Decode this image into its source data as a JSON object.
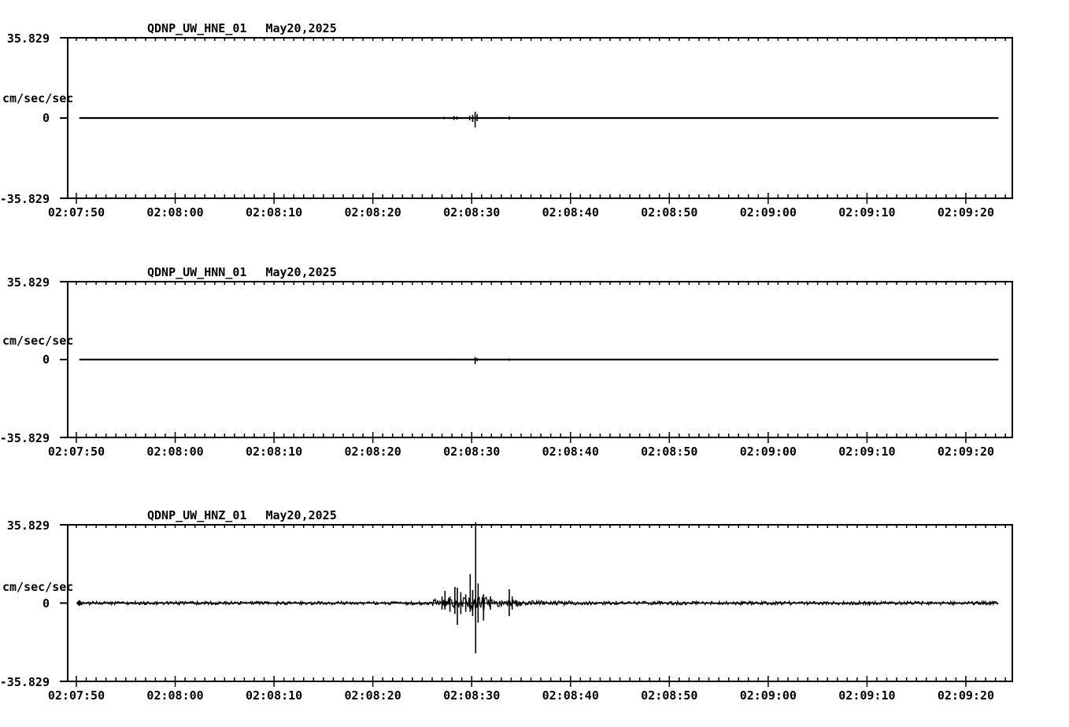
{
  "page": {
    "background": "#ffffff",
    "ink": "#000000"
  },
  "chart_data": [
    {
      "type": "line",
      "station": "QDNP_UW_HNE_01",
      "date": "May20,2025",
      "ylabel": "cm/sec/sec",
      "y_max_label": "35.829",
      "y_zero_label": "0",
      "y_min_label": "-35.829",
      "ylim": [
        -35.829,
        35.829
      ],
      "x_tick_labels": [
        "02:07:50",
        "02:08:00",
        "02:08:10",
        "02:08:20",
        "02:08:30",
        "02:08:40",
        "02:08:50",
        "02:09:00",
        "02:09:10",
        "02:09:20"
      ],
      "x_tick_seconds": [
        0,
        10,
        20,
        30,
        40,
        50,
        60,
        70,
        80,
        90
      ],
      "minor_tick_every_s": 1,
      "trace_start_s": 0.3,
      "trace_end_s": 93.3,
      "baseline": 0,
      "noise_amp": 0,
      "noise_envelope": [],
      "spikes": [
        {
          "t": 37.2,
          "up": 0.5,
          "down": 0.5
        },
        {
          "t": 38.2,
          "up": 0.9,
          "down": 0.9
        },
        {
          "t": 38.5,
          "up": 0.7,
          "down": 0.7
        },
        {
          "t": 39.8,
          "up": 1.0,
          "down": 1.0
        },
        {
          "t": 40.1,
          "up": 1.4,
          "down": 1.8
        },
        {
          "t": 40.35,
          "up": 2.8,
          "down": 4.2
        },
        {
          "t": 40.55,
          "up": 1.8,
          "down": 1.4
        },
        {
          "t": 43.8,
          "up": 0.7,
          "down": 0.7
        }
      ],
      "start_marker": false
    },
    {
      "type": "line",
      "station": "QDNP_UW_HNN_01",
      "date": "May20,2025",
      "ylabel": "cm/sec/sec",
      "y_max_label": "35.829",
      "y_zero_label": "0",
      "y_min_label": "-35.829",
      "ylim": [
        -35.829,
        35.829
      ],
      "x_tick_labels": [
        "02:07:50",
        "02:08:00",
        "02:08:10",
        "02:08:20",
        "02:08:30",
        "02:08:40",
        "02:08:50",
        "02:09:00",
        "02:09:10",
        "02:09:20"
      ],
      "x_tick_seconds": [
        0,
        10,
        20,
        30,
        40,
        50,
        60,
        70,
        80,
        90
      ],
      "minor_tick_every_s": 1,
      "trace_start_s": 0.3,
      "trace_end_s": 93.3,
      "baseline": 0,
      "noise_amp": 0,
      "noise_envelope": [],
      "spikes": [
        {
          "t": 38.2,
          "up": 0.4,
          "down": 0.4
        },
        {
          "t": 39.7,
          "up": 0.35,
          "down": 0.35
        },
        {
          "t": 40.35,
          "up": 1.2,
          "down": 2.1
        },
        {
          "t": 40.55,
          "up": 0.7,
          "down": 0.7
        },
        {
          "t": 43.8,
          "up": 0.5,
          "down": 0.5
        }
      ],
      "start_marker": false
    },
    {
      "type": "line",
      "station": "QDNP_UW_HNZ_01",
      "date": "May20,2025",
      "ylabel": "cm/sec/sec",
      "y_max_label": "35.829",
      "y_zero_label": "0",
      "y_min_label": "-35.829",
      "ylim": [
        -35.829,
        35.829
      ],
      "x_tick_labels": [
        "02:07:50",
        "02:08:00",
        "02:08:10",
        "02:08:20",
        "02:08:30",
        "02:08:40",
        "02:08:50",
        "02:09:00",
        "02:09:10",
        "02:09:20"
      ],
      "x_tick_seconds": [
        0,
        10,
        20,
        30,
        40,
        50,
        60,
        70,
        80,
        90
      ],
      "minor_tick_every_s": 1,
      "trace_start_s": 0.3,
      "trace_end_s": 93.3,
      "baseline": 0,
      "noise_amp": 0.8,
      "noise_envelope": [
        [
          36.0,
          37.5,
          1.8
        ],
        [
          37.5,
          39.5,
          2.6
        ],
        [
          39.5,
          41.5,
          3.0
        ],
        [
          41.5,
          43.0,
          1.8
        ],
        [
          43.0,
          45.0,
          1.5
        ],
        [
          45.0,
          50.0,
          1.1
        ]
      ],
      "spikes": [
        {
          "t": 37.0,
          "up": 3.0,
          "down": 3.0
        },
        {
          "t": 37.3,
          "up": 5.6,
          "down": 3.0
        },
        {
          "t": 37.8,
          "up": 3.0,
          "down": 4.0
        },
        {
          "t": 38.3,
          "up": 7.4,
          "down": 5.0
        },
        {
          "t": 38.55,
          "up": 7.0,
          "down": 10.0
        },
        {
          "t": 38.9,
          "up": 5.0,
          "down": 5.0
        },
        {
          "t": 39.4,
          "up": 4.0,
          "down": 4.0
        },
        {
          "t": 39.85,
          "up": 13.3,
          "down": 4.0
        },
        {
          "t": 40.1,
          "up": 6.0,
          "down": 6.0
        },
        {
          "t": 40.4,
          "up": 37.0,
          "down": 23.0
        },
        {
          "t": 40.65,
          "up": 9.0,
          "down": 9.0
        },
        {
          "t": 41.2,
          "up": 4.0,
          "down": 8.0
        },
        {
          "t": 41.9,
          "up": 3.0,
          "down": 3.0
        },
        {
          "t": 43.8,
          "up": 6.3,
          "down": 6.0
        },
        {
          "t": 44.1,
          "up": 3.0,
          "down": 3.0
        }
      ],
      "start_marker": true
    }
  ]
}
